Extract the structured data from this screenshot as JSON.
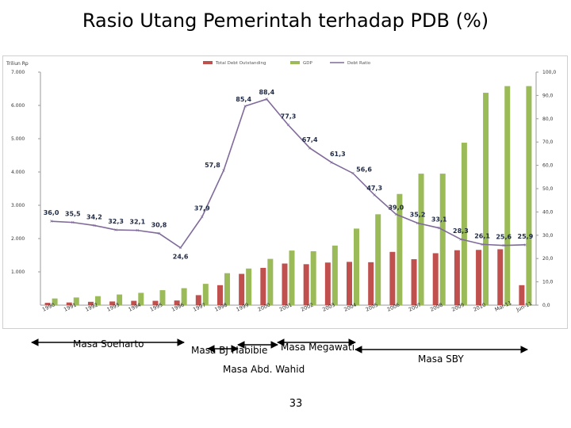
{
  "page": {
    "title": "Rasio Utang Pemerintah terhadap PDB (%)",
    "page_number": "33"
  },
  "eras": [
    {
      "label": "Masa Soeharto"
    },
    {
      "label": "Masa BJ Habibie"
    },
    {
      "label": "Masa Megawati"
    },
    {
      "label": "Masa Abd. Wahid"
    },
    {
      "label": "Masa SBY"
    }
  ],
  "colors": {
    "debt": "#c0504d",
    "gdp": "#9bbb59",
    "ratio": "#7f6a9a",
    "arrow": "#000000"
  },
  "chart_data": {
    "type": "bar",
    "ylabel": "Triliun Rp",
    "legend": [
      "Total Debt Outstanding",
      "GDP",
      "Debt Ratio"
    ],
    "legend_position": "top-center",
    "categories": [
      "1990",
      "1991",
      "1992",
      "1993",
      "1994",
      "1995",
      "1996",
      "1997",
      "1998",
      "1999",
      "2000",
      "2001",
      "2002",
      "2003",
      "2004",
      "2005",
      "2006",
      "2007",
      "2008",
      "2009",
      "2010",
      "Mar-11",
      "Jun-11"
    ],
    "y_left_ticks": [
      "7.000",
      "6.000",
      "5.000",
      "4.000",
      "3.000",
      "2.000",
      "1.000"
    ],
    "y_right_ticks": [
      "100,0",
      "90,0",
      "80,0",
      "70,0",
      "60,0",
      "50,0",
      "40,0",
      "30,0",
      "20,0",
      "10,0",
      "0,0"
    ],
    "ylim_left": [
      0,
      7000
    ],
    "ylim_right": [
      0,
      100
    ],
    "series": [
      {
        "name": "Total Debt Outstanding",
        "axis": "left",
        "values": [
          70,
          80,
          100,
          110,
          130,
          130,
          140,
          300,
          600,
          940,
          1120,
          1250,
          1230,
          1280,
          1300,
          1290,
          1600,
          1380,
          1560,
          1650,
          1660,
          1680,
          600
        ]
      },
      {
        "name": "GDP",
        "axis": "left",
        "values": [
          200,
          230,
          270,
          320,
          370,
          450,
          510,
          640,
          960,
          1100,
          1390,
          1640,
          1620,
          1790,
          2300,
          2730,
          3340,
          3950,
          3950,
          4880,
          6380,
          6580,
          6580
        ]
      },
      {
        "name": "Debt Ratio",
        "axis": "right",
        "values": [
          36.0,
          35.5,
          34.2,
          32.3,
          32.1,
          30.8,
          24.6,
          37.9,
          57.8,
          85.4,
          88.4,
          77.3,
          67.4,
          61.3,
          56.6,
          47.3,
          39.0,
          35.2,
          33.1,
          28.3,
          26.1,
          25.6,
          25.9
        ],
        "labels": [
          "36,0",
          "35,5",
          "34,2",
          "32,3",
          "32,1",
          "30,8",
          "24,6",
          "37,9",
          "57,8",
          "85,4",
          "88,4",
          "77,3",
          "67,4",
          "61,3",
          "56,6",
          "47,3",
          "39,0",
          "35,2",
          "33,1",
          "28,3",
          "26,1",
          "25,6",
          "25,9"
        ]
      }
    ]
  }
}
